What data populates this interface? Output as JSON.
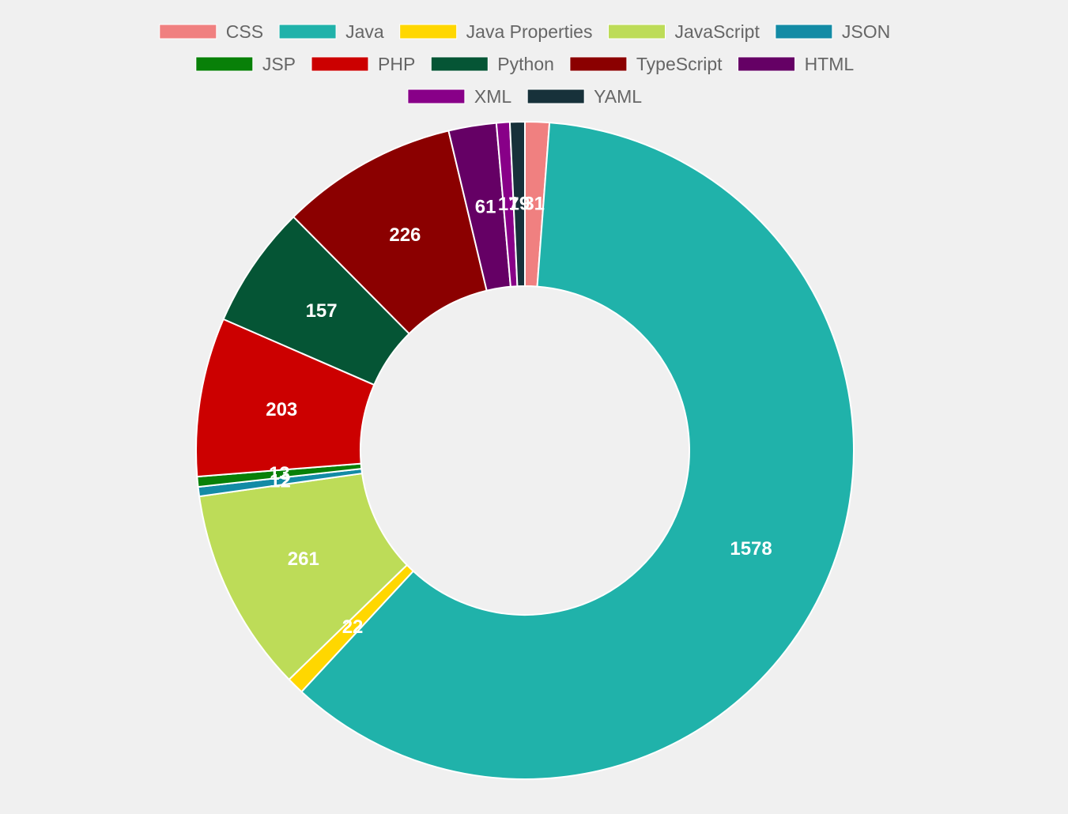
{
  "chart_data": {
    "type": "doughnut",
    "title": "",
    "legend_position": "top",
    "series": [
      {
        "name": "CSS",
        "value": 31,
        "color": "#f08080"
      },
      {
        "name": "Java",
        "value": 1578,
        "color": "#20b2aa"
      },
      {
        "name": "Java Properties",
        "value": 22,
        "color": "#ffd700"
      },
      {
        "name": "JavaScript",
        "value": 261,
        "color": "#bddc58"
      },
      {
        "name": "JSON",
        "value": 12,
        "color": "#138ba5"
      },
      {
        "name": "JSP",
        "value": 13,
        "color": "#088008"
      },
      {
        "name": "PHP",
        "value": 203,
        "color": "#cc0000"
      },
      {
        "name": "Python",
        "value": 157,
        "color": "#055535"
      },
      {
        "name": "TypeScript",
        "value": 226,
        "color": "#8b0000"
      },
      {
        "name": "HTML",
        "value": 61,
        "color": "#650065"
      },
      {
        "name": "XML",
        "value": 17,
        "color": "#880088"
      },
      {
        "name": "YAML",
        "value": 19,
        "color": "#17313a"
      }
    ]
  }
}
